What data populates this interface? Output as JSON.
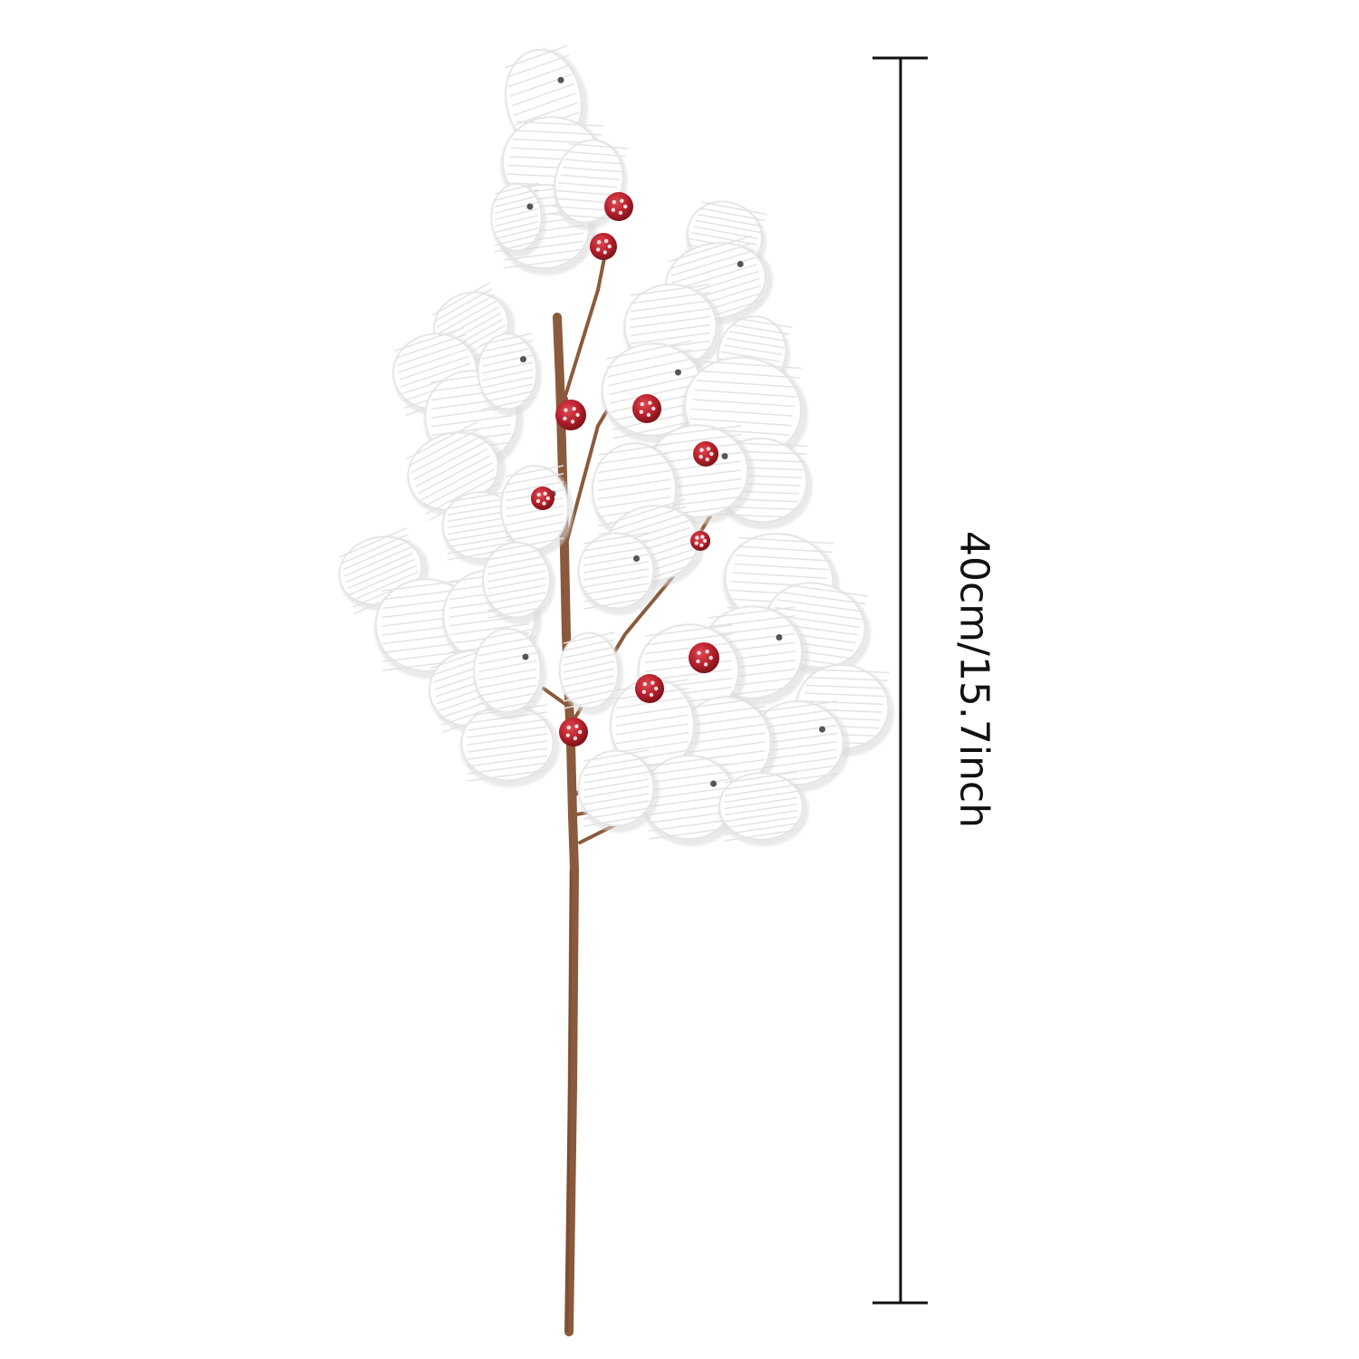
{
  "measurement": {
    "label": "40cm/15.7inch"
  },
  "colors": {
    "background": "#ffffff",
    "measure_line": "#111111",
    "stem": "#8b5a3c",
    "needle_white": "#ffffff",
    "needle_shadow": "#dcdcdc",
    "berry_red": "#b5202b"
  },
  "product": {
    "icon": "snowy-pine-branch-icon"
  }
}
